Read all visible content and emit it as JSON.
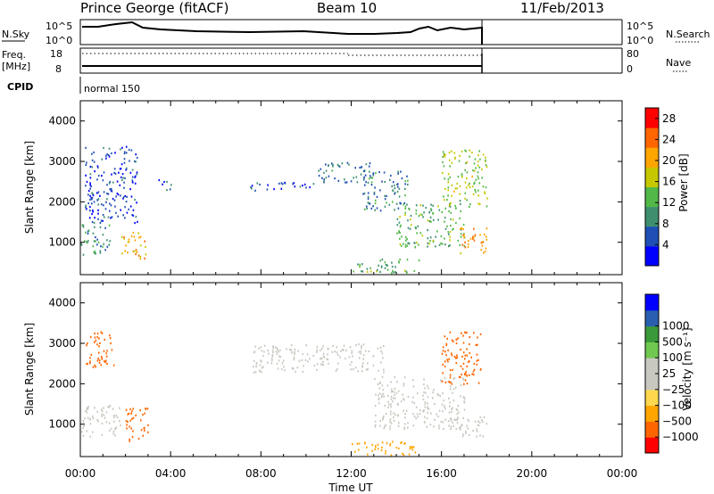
{
  "header": {
    "station": "Prince George (fitACF)",
    "beam": "Beam 10",
    "date": "11/Feb/2013"
  },
  "top_panels": {
    "nsky": {
      "label": "N.Sky",
      "left_ticks": [
        "10^5",
        "10^0"
      ],
      "right_ticks": [
        "10^5",
        "10^0"
      ],
      "right_label": "N.Search"
    },
    "freq": {
      "label_top": "Freq.",
      "label_bottom": "[MHz]",
      "left_ticks": [
        "18",
        "8"
      ],
      "right_ticks": [
        "80",
        "0"
      ],
      "right_label": "Nave"
    },
    "cpid": {
      "label": "CPID",
      "value": "normal 150"
    }
  },
  "colors": {
    "power_scale": [
      "#0000ff",
      "#1f4fb4",
      "#3f8f6f",
      "#52b948",
      "#c7c700",
      "#ffa500",
      "#ff6600",
      "#ff0000"
    ],
    "velocity_scale": [
      "#ff0000",
      "#ff6600",
      "#ffa500",
      "#ffd84d",
      "#c8c8c0",
      "#c8c8c0",
      "#70c850",
      "#3a9a3a",
      "#2a5fb0",
      "#0000ff"
    ],
    "ground_scatter": "#c8c8c0"
  },
  "chart_data": [
    {
      "type": "heatmap",
      "name": "power",
      "ylabel": "Slant Range [km]",
      "yticks": [
        "4000",
        "3000",
        "2000",
        "1000"
      ],
      "ylim": [
        200,
        4500
      ],
      "xlim": [
        "00:00",
        "24:00"
      ],
      "colorbar": {
        "label": "Power [dB]",
        "ticks": [
          "28",
          "24",
          "20",
          "16",
          "12",
          "8",
          "4"
        ],
        "range": [
          0,
          30
        ]
      },
      "echo_regions": [
        {
          "t0": 0.0,
          "t1": 1.3,
          "r0": 700,
          "r1": 1500,
          "value": 10
        },
        {
          "t0": 0.2,
          "t1": 2.5,
          "r0": 1500,
          "r1": 3400,
          "value": 5
        },
        {
          "t0": 1.8,
          "t1": 2.9,
          "r0": 600,
          "r1": 1300,
          "value": 20
        },
        {
          "t0": 3.4,
          "t1": 4.0,
          "r0": 2300,
          "r1": 2600,
          "value": 5
        },
        {
          "t0": 7.5,
          "t1": 10.5,
          "r0": 2300,
          "r1": 2500,
          "value": 5
        },
        {
          "t0": 10.5,
          "t1": 13.0,
          "r0": 2500,
          "r1": 3000,
          "value": 8
        },
        {
          "t0": 12.5,
          "t1": 14.5,
          "r0": 1800,
          "r1": 2800,
          "value": 8
        },
        {
          "t0": 12.0,
          "t1": 15.0,
          "r0": 250,
          "r1": 600,
          "value": 12
        },
        {
          "t0": 14.0,
          "t1": 17.0,
          "r0": 900,
          "r1": 2000,
          "value": 12
        },
        {
          "t0": 16.0,
          "t1": 18.0,
          "r0": 1900,
          "r1": 3300,
          "value": 15
        },
        {
          "t0": 16.8,
          "t1": 18.0,
          "r0": 700,
          "r1": 1400,
          "value": 22
        }
      ]
    },
    {
      "type": "heatmap",
      "name": "velocity",
      "ylabel": "Slant Range [km]",
      "yticks": [
        "4000",
        "3000",
        "2000",
        "1000"
      ],
      "ylim": [
        200,
        4500
      ],
      "xlim": [
        "00:00",
        "24:00"
      ],
      "xlabel": "Time UT",
      "xticks": [
        "00:00",
        "04:00",
        "08:00",
        "12:00",
        "16:00",
        "20:00",
        "00:00"
      ],
      "colorbar": {
        "label": "Velocity [m s⁻¹]",
        "ticks": [
          "1000",
          "500",
          "100",
          "25",
          "−25",
          "−100",
          "−500",
          "−1000"
        ]
      },
      "echo_regions": [
        {
          "t0": 0.0,
          "t1": 1.8,
          "r0": 700,
          "r1": 1500,
          "value": 0
        },
        {
          "t0": 2.0,
          "t1": 3.0,
          "r0": 600,
          "r1": 1500,
          "value": -300
        },
        {
          "t0": 0.2,
          "t1": 1.5,
          "r0": 2400,
          "r1": 3300,
          "value": -200
        },
        {
          "t0": 7.5,
          "t1": 13.5,
          "r0": 2300,
          "r1": 3000,
          "value": 0
        },
        {
          "t0": 13.0,
          "t1": 17.0,
          "r0": 900,
          "r1": 2200,
          "value": 0
        },
        {
          "t0": 12.0,
          "t1": 15.0,
          "r0": 250,
          "r1": 600,
          "value": -60
        },
        {
          "t0": 16.0,
          "t1": 17.8,
          "r0": 2000,
          "r1": 3300,
          "value": -200
        },
        {
          "t0": 16.5,
          "t1": 18.0,
          "r0": 700,
          "r1": 1300,
          "value": 0
        }
      ]
    }
  ]
}
